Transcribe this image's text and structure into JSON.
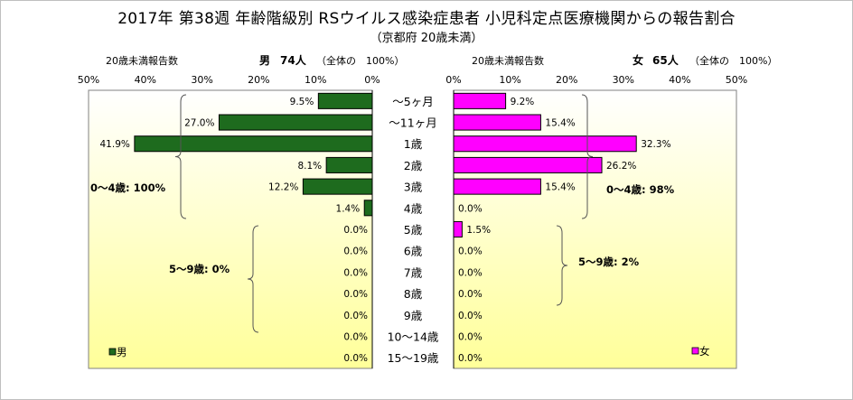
{
  "title": "2017年 第38週 年齢階級別 RSウイルス感染症患者 小児科定点医療機関からの報告割合",
  "subtitle": "（京都府 20歳未満）",
  "left_header": {
    "label": "20歳未満報告数",
    "sex": "男",
    "count": "74人",
    "total": "（全体の　100%）"
  },
  "right_header": {
    "label": "20歳未満報告数",
    "sex": "女",
    "count": "65人",
    "total": "（全体の　100%）"
  },
  "colors": {
    "male": "#1e6b1e",
    "female": "#ff00ff",
    "plot_top": "#ffffff",
    "plot_bottom": "#ffff99"
  },
  "chart_data": {
    "type": "bar",
    "orientation": "horizontal-butterfly",
    "categories": [
      "〜5ヶ月",
      "〜11ヶ月",
      "1歳",
      "2歳",
      "3歳",
      "4歳",
      "5歳",
      "6歳",
      "7歳",
      "8歳",
      "9歳",
      "10〜14歳",
      "15〜19歳"
    ],
    "series": [
      {
        "name": "男",
        "values": [
          9.5,
          27.0,
          41.9,
          8.1,
          12.2,
          1.4,
          0.0,
          0.0,
          0.0,
          0.0,
          0.0,
          0.0,
          0.0
        ],
        "labels": [
          "9.5%",
          "27.0%",
          "41.9%",
          "8.1%",
          "12.2%",
          "1.4%",
          "0.0%",
          "0.0%",
          "0.0%",
          "0.0%",
          "0.0%",
          "0.0%",
          "0.0%"
        ]
      },
      {
        "name": "女",
        "values": [
          9.2,
          15.4,
          32.3,
          26.2,
          15.4,
          0.0,
          1.5,
          0.0,
          0.0,
          0.0,
          0.0,
          0.0,
          0.0
        ],
        "labels": [
          "9.2%",
          "15.4%",
          "32.3%",
          "26.2%",
          "15.4%",
          "0.0%",
          "1.5%",
          "0.0%",
          "0.0%",
          "0.0%",
          "0.0%",
          "0.0%",
          "0.0%"
        ]
      }
    ],
    "x_ticks": [
      "50%",
      "40%",
      "30%",
      "20%",
      "10%",
      "0%",
      "0%",
      "10%",
      "20%",
      "30%",
      "40%",
      "50%"
    ],
    "xlim": [
      0,
      50
    ],
    "annotations": {
      "male_0_4": "0〜4歳: 100%",
      "male_5_9": "5〜9歳: 0%",
      "female_0_4": "0〜4歳: 98%",
      "female_5_9": "5〜9歳: 2%"
    },
    "legend": {
      "male": "男",
      "female": "女"
    },
    "grid": true
  }
}
